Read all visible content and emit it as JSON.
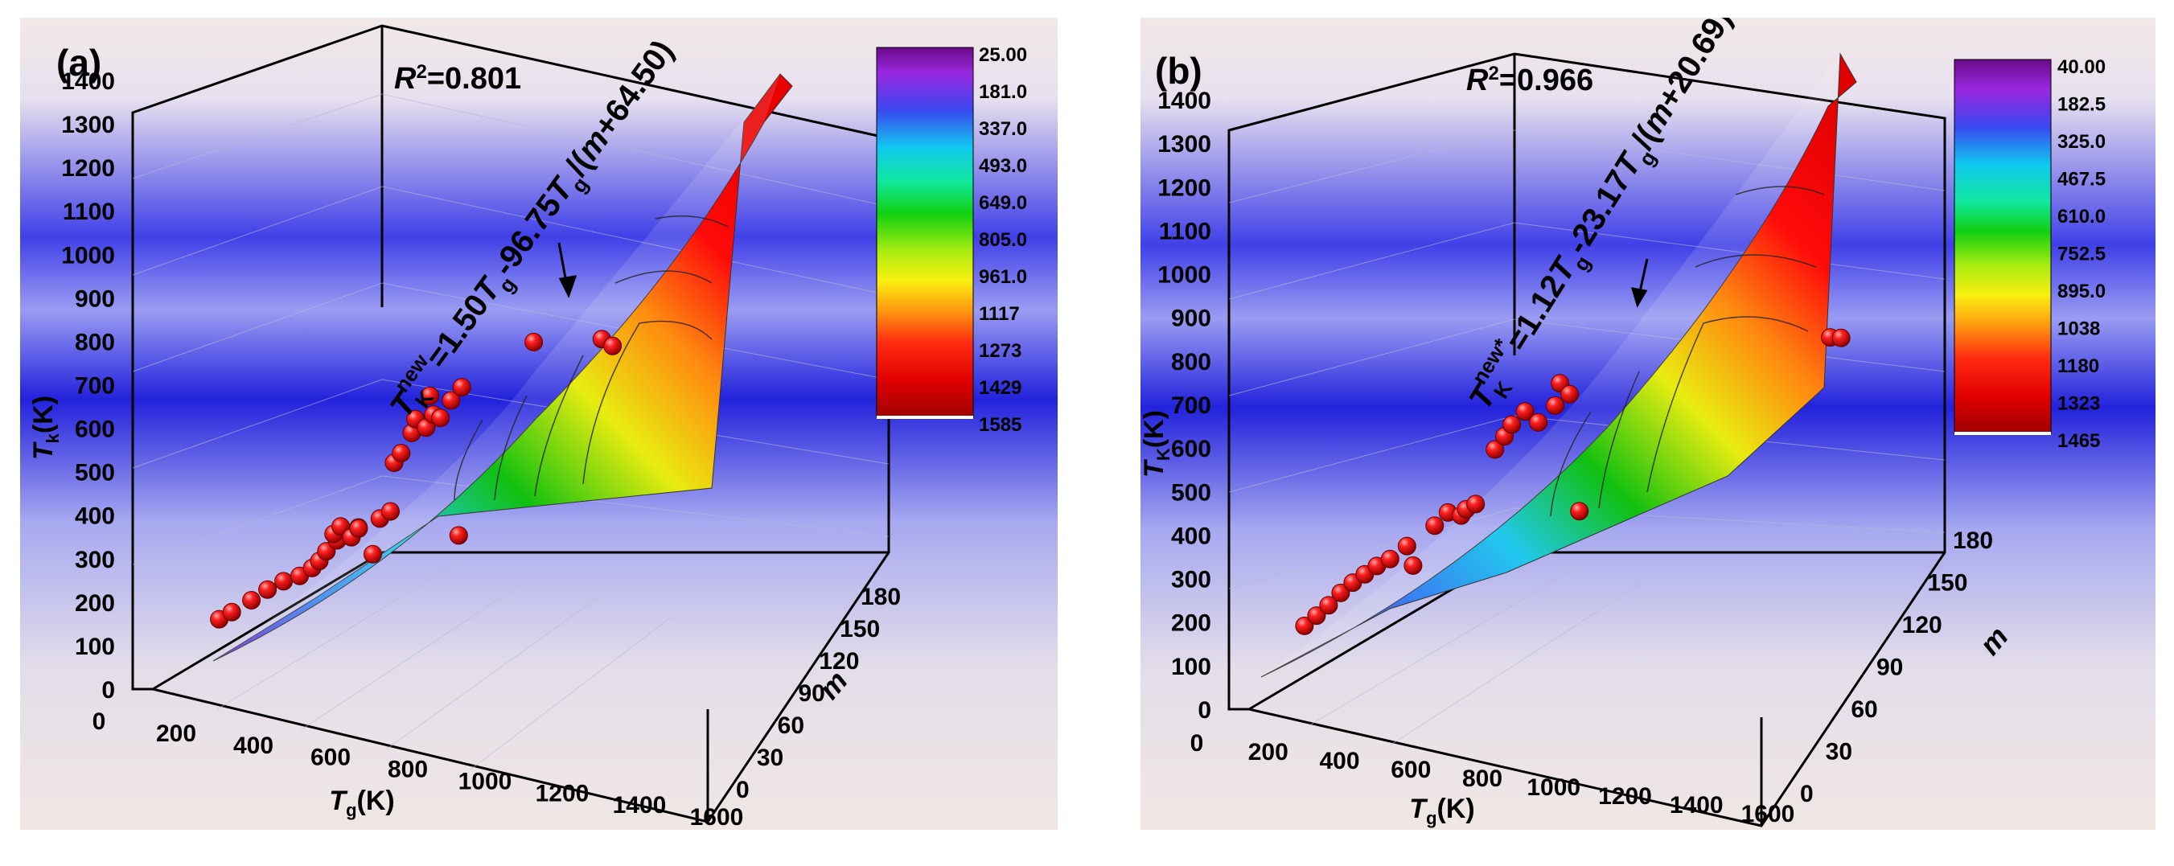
{
  "colors": {
    "surface_low": "#7a19c8",
    "surface_mid": "#10c010",
    "surface_high": "#ff0a0a",
    "point": "#e00000"
  },
  "chart_data": [
    {
      "type": "surface3d",
      "panel_label": "(a)",
      "r2_label": "R",
      "r2_sup": "2",
      "r2_value": "=0.801",
      "equation": {
        "lhs": "T",
        "lhs_sub": "K",
        "lhs_sup": "new",
        "rhs_1": "=1.50",
        "var_1": "T",
        "sub_1": "g",
        "rhs_2": "-96.75",
        "var_2": "T",
        "sub_2": "g",
        "rhs_3": "/(",
        "var_3": "m",
        "rhs_4": "+64.50)"
      },
      "zlabel": "T",
      "zlabel_sub": "k",
      "zlabel_unit": "(K)",
      "xlabel": "T",
      "xlabel_sub": "g",
      "xlabel_unit": "(K)",
      "ylabel": "m",
      "z_ticks": [
        "0",
        "100",
        "200",
        "300",
        "400",
        "500",
        "600",
        "700",
        "800",
        "900",
        "1000",
        "1100",
        "1200",
        "1300",
        "1400"
      ],
      "x_ticks": [
        "0",
        "200",
        "400",
        "600",
        "800",
        "1000",
        "1200",
        "1400",
        "1600"
      ],
      "y_ticks": [
        "0",
        "30",
        "60",
        "90",
        "120",
        "150",
        "180"
      ],
      "zlim": [
        0,
        1400
      ],
      "xlim": [
        0,
        1600
      ],
      "ylim": [
        0,
        180
      ],
      "colorbar_labels": [
        "25.00",
        "181.0",
        "337.0",
        "493.0",
        "649.0",
        "805.0",
        "961.0",
        "1117",
        "1273",
        "1429",
        "1585"
      ],
      "points": [
        [
          100,
          30,
          140
        ],
        [
          130,
          35,
          160
        ],
        [
          180,
          40,
          195
        ],
        [
          220,
          45,
          225
        ],
        [
          260,
          50,
          250
        ],
        [
          300,
          55,
          268
        ],
        [
          330,
          60,
          290
        ],
        [
          350,
          60,
          310
        ],
        [
          360,
          70,
          330
        ],
        [
          380,
          80,
          355
        ],
        [
          390,
          60,
          380
        ],
        [
          400,
          70,
          395
        ],
        [
          420,
          80,
          370
        ],
        [
          430,
          90,
          390
        ],
        [
          450,
          70,
          400
        ],
        [
          460,
          100,
          330
        ],
        [
          470,
          110,
          410
        ],
        [
          480,
          130,
          420
        ],
        [
          500,
          120,
          540
        ],
        [
          510,
          130,
          560
        ],
        [
          520,
          150,
          600
        ],
        [
          540,
          140,
          640
        ],
        [
          560,
          150,
          620
        ],
        [
          590,
          140,
          660
        ],
        [
          600,
          150,
          650
        ],
        [
          620,
          160,
          690
        ],
        [
          640,
          170,
          720
        ],
        [
          610,
          110,
          720
        ],
        [
          700,
          100,
          420
        ],
        [
          900,
          110,
          900
        ],
        [
          1100,
          100,
          950
        ],
        [
          1130,
          100,
          940
        ]
      ]
    },
    {
      "type": "surface3d",
      "panel_label": "(b)",
      "r2_label": "R",
      "r2_sup": "2",
      "r2_value": "=0.966",
      "equation": {
        "lhs": "T",
        "lhs_sub": "K",
        "lhs_sup": "new*",
        "rhs_1": "=1.12",
        "var_1": "T",
        "sub_1": "g",
        "rhs_2": "-23.17",
        "var_2": "T",
        "sub_2": "g",
        "rhs_3": "/(",
        "var_3": "m",
        "rhs_4": "+20.69)"
      },
      "zlabel": "T",
      "zlabel_sub": "K",
      "zlabel_unit": "(K)",
      "xlabel": "T",
      "xlabel_sub": "g",
      "xlabel_unit": "(K)",
      "ylabel": "m",
      "z_ticks": [
        "0",
        "100",
        "200",
        "300",
        "400",
        "500",
        "600",
        "700",
        "800",
        "900",
        "1000",
        "1100",
        "1200",
        "1300",
        "1400"
      ],
      "x_ticks": [
        "0",
        "200",
        "400",
        "600",
        "800",
        "1000",
        "1200",
        "1400",
        "1600"
      ],
      "y_ticks": [
        "0",
        "30",
        "60",
        "90",
        "120",
        "150",
        "180"
      ],
      "zlim": [
        0,
        1400
      ],
      "xlim": [
        0,
        1600
      ],
      "ylim": [
        0,
        180
      ],
      "colorbar_labels": [
        "40.00",
        "182.5",
        "325.0",
        "467.5",
        "610.0",
        "752.5",
        "895.0",
        "1038",
        "1180",
        "1323",
        "1465"
      ],
      "points": [
        [
          100,
          30,
          140
        ],
        [
          130,
          35,
          165
        ],
        [
          160,
          40,
          190
        ],
        [
          190,
          45,
          220
        ],
        [
          220,
          50,
          245
        ],
        [
          250,
          55,
          265
        ],
        [
          280,
          60,
          285
        ],
        [
          310,
          70,
          300
        ],
        [
          350,
          80,
          330
        ],
        [
          380,
          60,
          290
        ],
        [
          420,
          90,
          380
        ],
        [
          450,
          100,
          410
        ],
        [
          480,
          110,
          400
        ],
        [
          500,
          100,
          420
        ],
        [
          520,
          110,
          430
        ],
        [
          560,
          130,
          560
        ],
        [
          580,
          140,
          590
        ],
        [
          600,
          140,
          620
        ],
        [
          630,
          150,
          650
        ],
        [
          660,
          160,
          620
        ],
        [
          700,
          170,
          660
        ],
        [
          720,
          160,
          720
        ],
        [
          740,
          170,
          690
        ],
        [
          800,
          120,
          420
        ],
        [
          1460,
          170,
          860
        ],
        [
          1490,
          170,
          860
        ]
      ]
    }
  ]
}
